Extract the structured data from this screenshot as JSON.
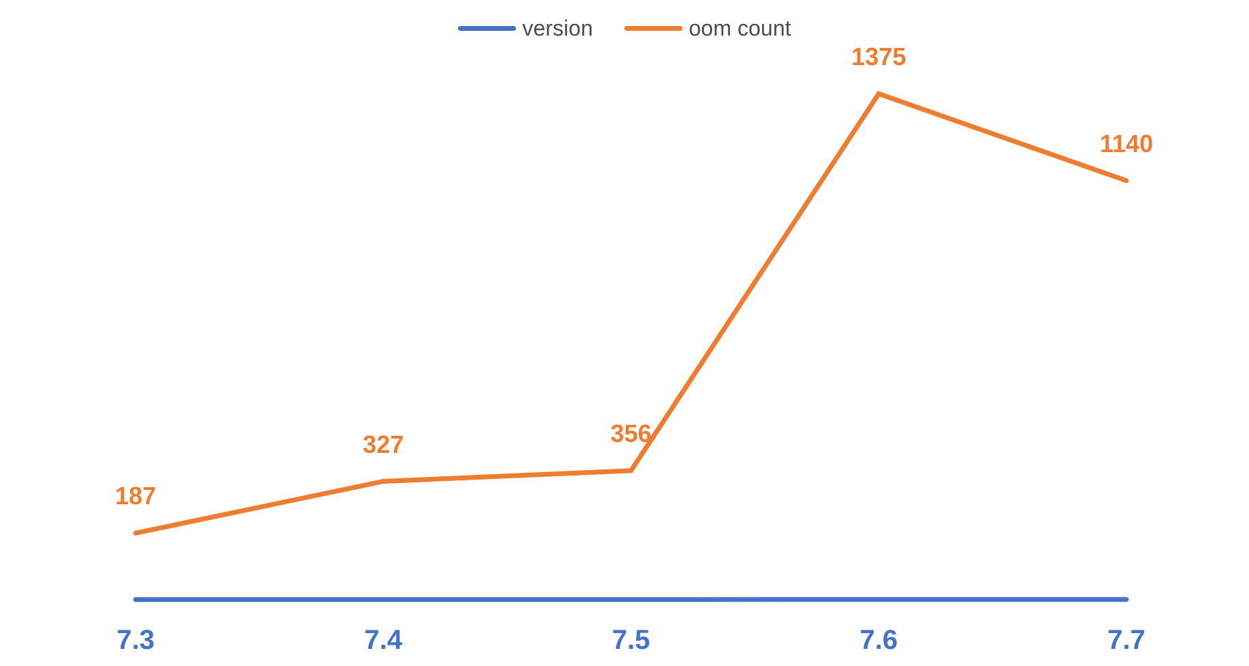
{
  "chart_data": {
    "type": "line",
    "title": "",
    "xlabel": "",
    "ylabel": "",
    "categories": [
      "7.3",
      "7.4",
      "7.5",
      "7.6",
      "7.7"
    ],
    "series": [
      {
        "name": "version",
        "values": [
          7.3,
          7.4,
          7.5,
          7.6,
          7.7
        ],
        "labels": [
          "7.3",
          "7.4",
          "7.5",
          "7.6",
          "7.7"
        ],
        "color": "#4472C4",
        "labels_position": "below"
      },
      {
        "name": "oom count",
        "values": [
          187,
          327,
          356,
          1375,
          1140
        ],
        "labels": [
          "187",
          "327",
          "356",
          "1375",
          "1140"
        ],
        "color": "#ED7D31",
        "labels_position": "above"
      }
    ],
    "ylim": [
      0,
      1630
    ],
    "grid": false,
    "axes_visible": false,
    "data_labels": true,
    "legend_position": "top-center",
    "background_color": "#ffffff",
    "legend_text_color": "#4d4d4d"
  }
}
